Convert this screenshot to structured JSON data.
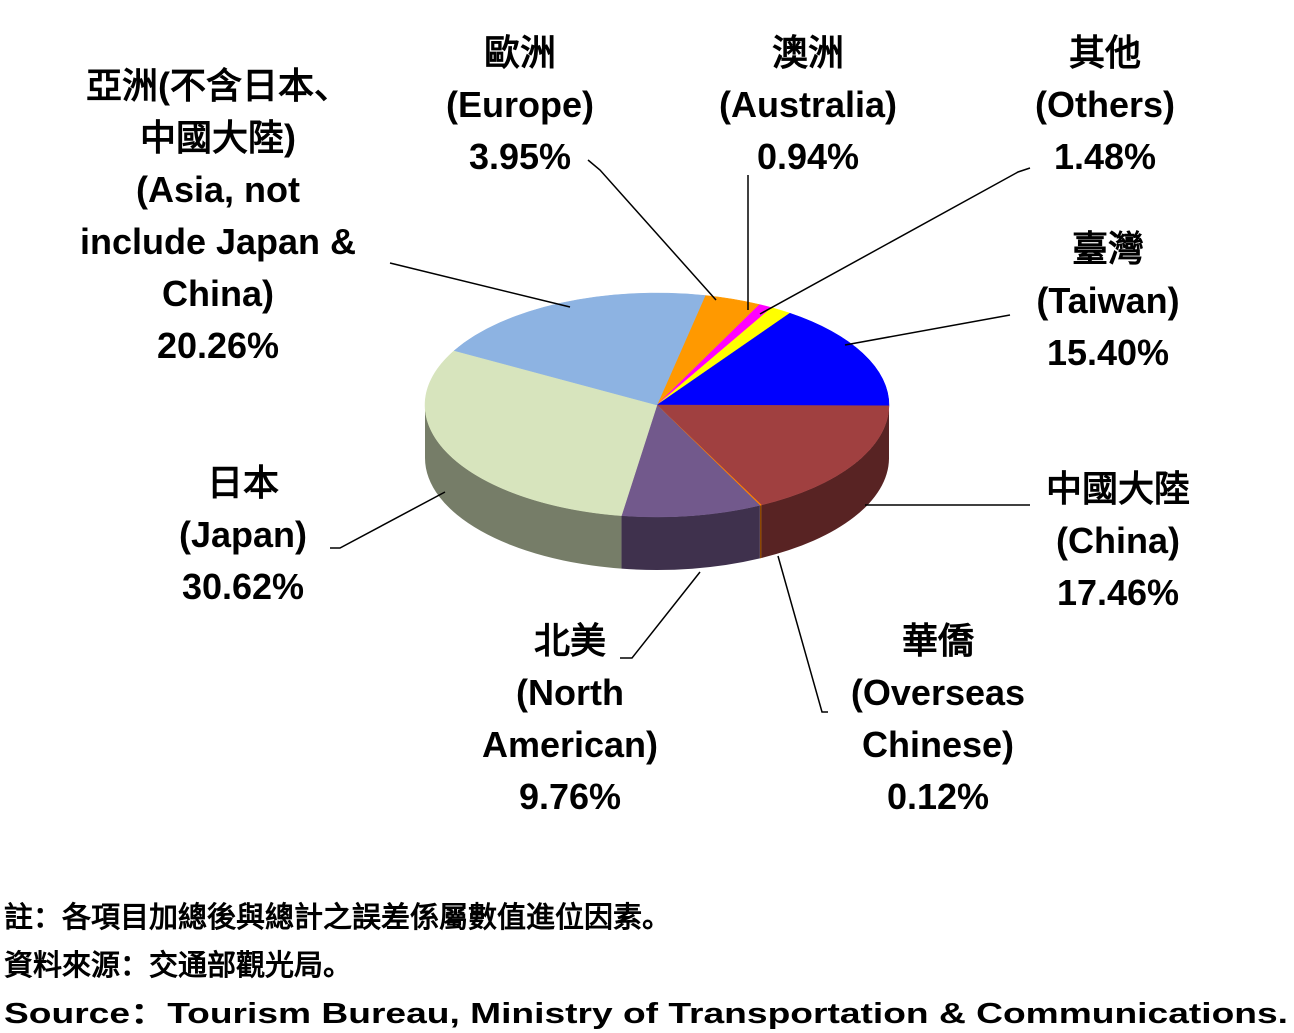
{
  "chart_data": {
    "type": "pie3d",
    "categories": [
      [
        "歐洲",
        "(Europe)"
      ],
      [
        "澳洲",
        "(Australia)"
      ],
      [
        "其他",
        "(Others)"
      ],
      [
        "臺灣",
        "(Taiwan)"
      ],
      [
        "中國大陸",
        "(China)"
      ],
      [
        "華僑",
        "(Overseas",
        "Chinese)"
      ],
      [
        "北美",
        "(North",
        "American)"
      ],
      [
        "日本",
        "(Japan)"
      ],
      [
        "亞洲(不含日本、",
        "中國大陸)",
        "(Asia, not",
        "include Japan &",
        "China)"
      ]
    ],
    "values": [
      3.95,
      0.94,
      1.48,
      15.4,
      17.46,
      0.12,
      9.76,
      30.62,
      20.26
    ],
    "value_labels": [
      "3.95%",
      "0.94%",
      "1.48%",
      "15.40%",
      "17.46%",
      "0.12%",
      "9.76%",
      "30.62%",
      "20.26%"
    ],
    "colors": [
      "#ff9900",
      "#ff00ff",
      "#ffff00",
      "#0000ff",
      "#a04040",
      "#ff8000",
      "#72598c",
      "#d7e4bd",
      "#8db3e2"
    ],
    "notes": [
      "註：各項目加總後與總計之誤差係屬數值進位因素。",
      "資料來源：交通部觀光局。",
      "Source：Tourism Bureau, Ministry of Transportation & Communications."
    ]
  }
}
